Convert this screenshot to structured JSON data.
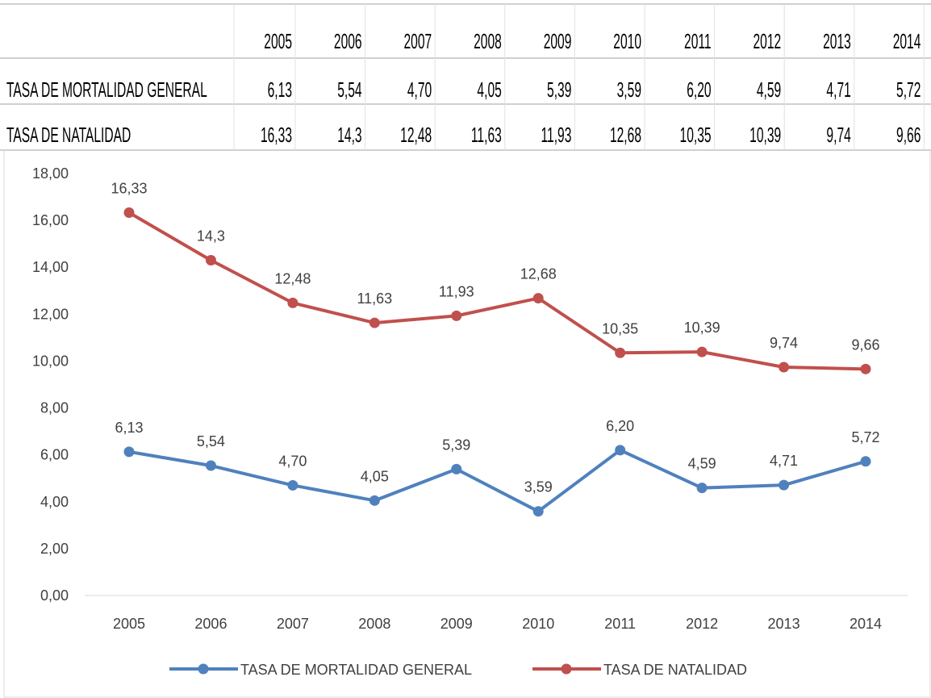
{
  "chart_data": {
    "type": "line",
    "categories": [
      "2005",
      "2006",
      "2007",
      "2008",
      "2009",
      "2010",
      "2011",
      "2012",
      "2013",
      "2014"
    ],
    "series": [
      {
        "name": "TASA DE MORTALIDAD GENERAL",
        "color": "#4f81bd",
        "values": [
          6.13,
          5.54,
          4.7,
          4.05,
          5.39,
          3.59,
          6.2,
          4.59,
          4.71,
          5.72
        ],
        "value_labels": [
          "6,13",
          "5,54",
          "4,70",
          "4,05",
          "5,39",
          "3,59",
          "6,20",
          "4,59",
          "4,71",
          "5,72"
        ]
      },
      {
        "name": "TASA DE NATALIDAD",
        "color": "#c0504d",
        "values": [
          16.33,
          14.3,
          12.48,
          11.63,
          11.93,
          12.68,
          10.35,
          10.39,
          9.74,
          9.66
        ],
        "value_labels": [
          "16,33",
          "14,3",
          "12,48",
          "11,63",
          "11,93",
          "12,68",
          "10,35",
          "10,39",
          "9,74",
          "9,66"
        ]
      }
    ],
    "ylim": [
      0,
      18
    ],
    "yticks": [
      {
        "value": 0,
        "label": "0,00"
      },
      {
        "value": 2,
        "label": "2,00"
      },
      {
        "value": 4,
        "label": "4,00"
      },
      {
        "value": 6,
        "label": "6,00"
      },
      {
        "value": 8,
        "label": "8,00"
      },
      {
        "value": 10,
        "label": "10,00"
      },
      {
        "value": 12,
        "label": "12,00"
      },
      {
        "value": 14,
        "label": "14,00"
      },
      {
        "value": 16,
        "label": "16,00"
      },
      {
        "value": 18,
        "label": "18,00"
      }
    ],
    "grid": false,
    "legend": "bottom"
  }
}
